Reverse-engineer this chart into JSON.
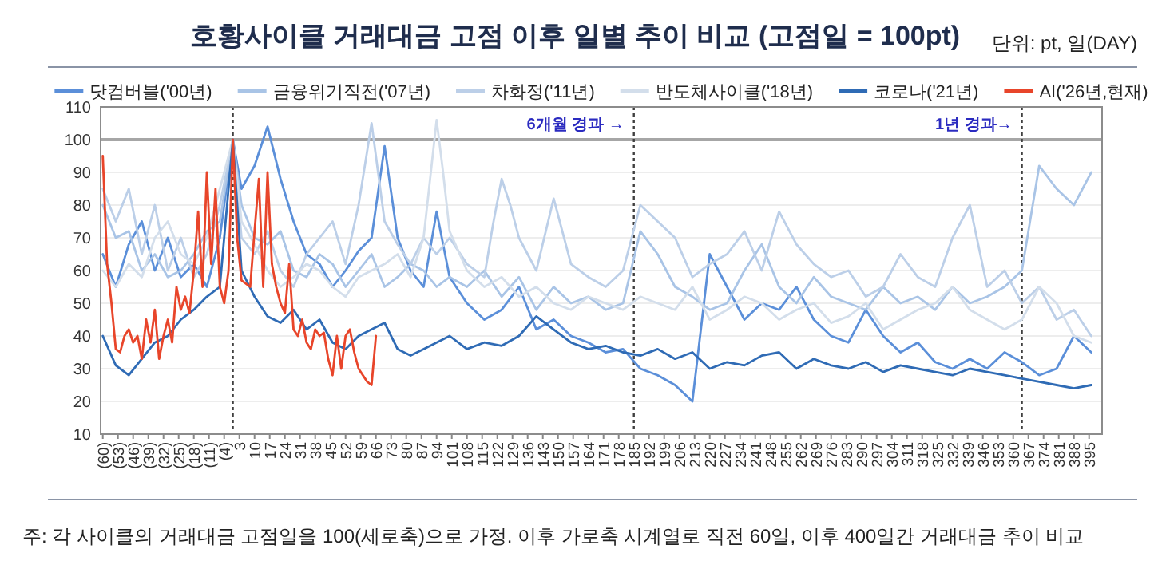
{
  "chart_data": {
    "type": "line",
    "title": "호황사이클 거래대금 고점 이후 일별 추이 비교 (고점일 = 100pt)",
    "annotations": [
      "단위: pt, 일(DAY)",
      "주: 각 사이클의 거래대금 고점일을 100(세로축)으로 가정. 이후 가로축 시계열로 직전 60일, 이후 400일간 거래대금 추이 비교"
    ],
    "xlim": [
      -61,
      401
    ],
    "ylim": [
      10,
      110
    ],
    "yticks": [
      10,
      20,
      30,
      40,
      50,
      60,
      70,
      80,
      90,
      100,
      110
    ],
    "xticks": [
      {
        "value": -60,
        "label": "(60)"
      },
      {
        "value": -53,
        "label": "(53)"
      },
      {
        "value": -46,
        "label": "(46)"
      },
      {
        "value": -39,
        "label": "(39)"
      },
      {
        "value": -32,
        "label": "(32)"
      },
      {
        "value": -25,
        "label": "(25)"
      },
      {
        "value": -18,
        "label": "(18)"
      },
      {
        "value": -11,
        "label": "(11)"
      },
      {
        "value": -4,
        "label": "(4)"
      },
      3,
      10,
      17,
      24,
      31,
      38,
      45,
      52,
      59,
      66,
      73,
      80,
      87,
      94,
      101,
      108,
      115,
      122,
      129,
      136,
      143,
      150,
      157,
      164,
      171,
      178,
      185,
      192,
      199,
      206,
      213,
      220,
      227,
      234,
      241,
      248,
      255,
      262,
      269,
      276,
      283,
      290,
      297,
      304,
      311,
      318,
      325,
      332,
      339,
      346,
      353,
      360,
      367,
      374,
      381,
      388,
      395
    ],
    "grid": "y",
    "legend": "top",
    "ref_lines": [
      {
        "axis": "y",
        "value": 100,
        "label": null,
        "color": "#a6a6a6",
        "line_style": "solid"
      },
      {
        "axis": "x",
        "value": 0,
        "label": null,
        "color": "#404040",
        "line_style": "dotted"
      },
      {
        "axis": "x",
        "value": 185,
        "label": "6개월 경과 →",
        "color": "#404040",
        "line_style": "dotted"
      },
      {
        "axis": "x",
        "value": 364,
        "label": "1년 경과→",
        "color": "#404040",
        "line_style": "dotted"
      }
    ],
    "series": [
      {
        "name": "닷컴버블('00년)",
        "color": "#5b8fd9",
        "x": [
          -60,
          -54,
          -48,
          -42,
          -36,
          -30,
          -24,
          -18,
          -12,
          -6,
          0,
          4,
          10,
          16,
          22,
          28,
          34,
          40,
          46,
          52,
          58,
          64,
          70,
          76,
          82,
          88,
          94,
          100,
          108,
          116,
          124,
          132,
          140,
          148,
          156,
          164,
          172,
          180,
          188,
          196,
          204,
          212,
          220,
          228,
          236,
          244,
          252,
          260,
          268,
          276,
          284,
          292,
          300,
          308,
          316,
          324,
          332,
          340,
          348,
          356,
          364,
          372,
          380,
          388,
          396
        ],
        "values": [
          65,
          55,
          68,
          75,
          60,
          70,
          58,
          62,
          55,
          70,
          100,
          85,
          92,
          104,
          88,
          75,
          65,
          62,
          55,
          60,
          66,
          70,
          98,
          70,
          60,
          55,
          78,
          58,
          50,
          45,
          48,
          55,
          42,
          45,
          40,
          38,
          35,
          36,
          30,
          28,
          25,
          20,
          65,
          55,
          45,
          50,
          48,
          55,
          45,
          40,
          38,
          48,
          40,
          35,
          38,
          32,
          30,
          33,
          30,
          35,
          32,
          28,
          30,
          40,
          35
        ]
      },
      {
        "name": "금융위기직전('07년)",
        "color": "#a9c4e6",
        "x": [
          -60,
          -54,
          -48,
          -42,
          -36,
          -30,
          -24,
          -18,
          -12,
          -6,
          0,
          4,
          10,
          16,
          22,
          28,
          34,
          40,
          46,
          52,
          58,
          64,
          70,
          76,
          82,
          88,
          94,
          100,
          108,
          116,
          124,
          132,
          140,
          148,
          156,
          164,
          172,
          180,
          188,
          196,
          204,
          212,
          220,
          228,
          236,
          244,
          252,
          260,
          268,
          276,
          284,
          292,
          300,
          308,
          316,
          324,
          332,
          340,
          348,
          356,
          364,
          372,
          380,
          388,
          396
        ],
        "values": [
          80,
          70,
          72,
          60,
          65,
          58,
          60,
          65,
          72,
          75,
          100,
          80,
          70,
          68,
          72,
          60,
          58,
          65,
          62,
          55,
          60,
          65,
          55,
          58,
          62,
          60,
          55,
          58,
          55,
          60,
          52,
          58,
          48,
          55,
          50,
          52,
          48,
          50,
          72,
          65,
          55,
          52,
          48,
          50,
          60,
          68,
          55,
          50,
          58,
          52,
          50,
          48,
          55,
          50,
          52,
          48,
          55,
          50,
          52,
          55,
          60,
          92,
          85,
          80,
          90
        ]
      },
      {
        "name": "차화정('11년)",
        "color": "#bccfe8",
        "x": [
          -60,
          -54,
          -48,
          -42,
          -36,
          -30,
          -24,
          -18,
          -12,
          -6,
          0,
          4,
          10,
          16,
          22,
          28,
          34,
          40,
          46,
          52,
          58,
          64,
          70,
          76,
          82,
          88,
          94,
          100,
          108,
          116,
          120,
          124,
          128,
          132,
          140,
          148,
          156,
          164,
          172,
          180,
          188,
          196,
          204,
          212,
          220,
          228,
          236,
          244,
          252,
          260,
          268,
          276,
          284,
          292,
          300,
          308,
          316,
          324,
          332,
          340,
          348,
          356,
          364,
          372,
          380,
          388,
          396
        ],
        "values": [
          85,
          75,
          85,
          65,
          80,
          60,
          70,
          58,
          65,
          80,
          100,
          70,
          65,
          72,
          60,
          55,
          65,
          70,
          75,
          62,
          80,
          105,
          75,
          68,
          62,
          70,
          65,
          70,
          62,
          58,
          74,
          88,
          80,
          70,
          60,
          82,
          62,
          58,
          55,
          60,
          80,
          75,
          70,
          58,
          62,
          65,
          72,
          60,
          78,
          68,
          62,
          58,
          60,
          52,
          55,
          65,
          58,
          55,
          70,
          80,
          55,
          60,
          50,
          55,
          45,
          48,
          40
        ]
      },
      {
        "name": "반도체사이클('18년)",
        "color": "#d3deeb",
        "x": [
          -60,
          -54,
          -48,
          -42,
          -36,
          -30,
          -24,
          -18,
          -12,
          -6,
          0,
          4,
          10,
          16,
          22,
          28,
          34,
          40,
          46,
          52,
          58,
          64,
          70,
          76,
          82,
          88,
          91,
          94,
          97,
          100,
          108,
          116,
          124,
          132,
          140,
          148,
          156,
          164,
          172,
          180,
          188,
          196,
          204,
          212,
          220,
          228,
          236,
          244,
          252,
          260,
          268,
          276,
          284,
          292,
          300,
          308,
          316,
          324,
          332,
          340,
          348,
          356,
          364,
          372,
          380,
          388,
          396
        ],
        "values": [
          60,
          55,
          62,
          58,
          70,
          75,
          65,
          62,
          70,
          85,
          100,
          75,
          68,
          60,
          55,
          58,
          62,
          60,
          55,
          52,
          58,
          60,
          62,
          65,
          58,
          70,
          88,
          106,
          90,
          72,
          60,
          55,
          58,
          52,
          55,
          50,
          48,
          52,
          50,
          48,
          52,
          50,
          48,
          55,
          45,
          48,
          52,
          50,
          45,
          48,
          50,
          44,
          46,
          50,
          42,
          45,
          48,
          50,
          55,
          48,
          45,
          42,
          45,
          55,
          50,
          40,
          38
        ]
      },
      {
        "name": "코로나('21년)",
        "color": "#2f6bb5",
        "x": [
          -60,
          -54,
          -48,
          -42,
          -36,
          -30,
          -24,
          -18,
          -12,
          -6,
          0,
          4,
          10,
          16,
          22,
          28,
          34,
          40,
          46,
          52,
          58,
          64,
          70,
          76,
          82,
          88,
          94,
          100,
          108,
          116,
          124,
          132,
          140,
          148,
          156,
          164,
          172,
          180,
          188,
          196,
          204,
          212,
          220,
          228,
          236,
          244,
          252,
          260,
          268,
          276,
          284,
          292,
          300,
          308,
          316,
          324,
          332,
          340,
          348,
          356,
          364,
          372,
          380,
          388,
          396
        ],
        "values": [
          40,
          31,
          28,
          33,
          38,
          40,
          45,
          48,
          52,
          55,
          100,
          60,
          52,
          46,
          44,
          48,
          42,
          45,
          38,
          36,
          40,
          42,
          44,
          36,
          34,
          36,
          38,
          40,
          36,
          38,
          37,
          40,
          46,
          42,
          38,
          36,
          37,
          35,
          34,
          36,
          33,
          35,
          30,
          32,
          31,
          34,
          35,
          30,
          33,
          31,
          30,
          32,
          29,
          31,
          30,
          29,
          28,
          30,
          29,
          28,
          27,
          26,
          25,
          24,
          25
        ]
      },
      {
        "name": "AI('26년,현재)",
        "color": "#e8452a",
        "x": [
          -60,
          -58,
          -56,
          -54,
          -52,
          -50,
          -48,
          -46,
          -44,
          -42,
          -40,
          -38,
          -36,
          -34,
          -32,
          -30,
          -28,
          -26,
          -24,
          -22,
          -20,
          -18,
          -16,
          -14,
          -12,
          -10,
          -8,
          -6,
          -4,
          -2,
          0,
          2,
          4,
          6,
          8,
          10,
          12,
          14,
          16,
          18,
          20,
          22,
          24,
          26,
          28,
          30,
          32,
          34,
          36,
          38,
          40,
          42,
          44,
          46,
          48,
          50,
          52,
          54,
          56,
          58,
          60,
          62,
          64,
          66
        ],
        "values": [
          95,
          62,
          50,
          36,
          35,
          40,
          42,
          38,
          40,
          33,
          45,
          38,
          48,
          33,
          40,
          45,
          38,
          55,
          48,
          52,
          47,
          60,
          78,
          55,
          90,
          62,
          85,
          55,
          50,
          60,
          100,
          70,
          57,
          56,
          55,
          72,
          88,
          55,
          90,
          62,
          55,
          50,
          47,
          62,
          42,
          40,
          45,
          38,
          36,
          42,
          40,
          41,
          33,
          28,
          40,
          30,
          40,
          42,
          35,
          30,
          28,
          26,
          25,
          40
        ]
      }
    ]
  }
}
